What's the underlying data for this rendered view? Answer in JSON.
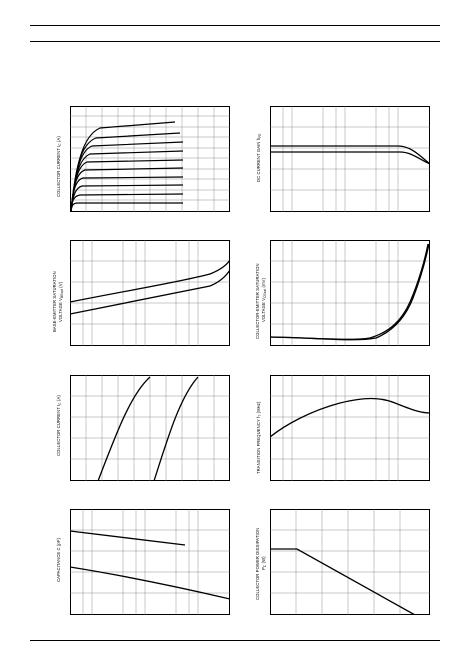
{
  "charts": [
    {
      "id": "ic-vce",
      "ylabel": "COLLECTOR CURRENT  I",
      "sub": "C",
      "unit": " (A)"
    },
    {
      "id": "hfe-ic",
      "ylabel": "DC CURRENT GAIN  h",
      "sub": "FE",
      "unit": ""
    },
    {
      "id": "vbesat-ic",
      "ylabel": "BASE-EMITTER SATURATION",
      "ylabel2": "VOLTAGE  V",
      "sub": "BEsat",
      "unit": "  (V)"
    },
    {
      "id": "vcesat-ic",
      "ylabel": "COLLECTOR-EMITTER SATURATION",
      "ylabel2": "VOLTAGE  V",
      "sub": "CEsat",
      "unit": "  (mV)"
    },
    {
      "id": "ic-vbe",
      "ylabel": "COLLECTOR CURRENT  I",
      "sub": "C",
      "unit": " (A)"
    },
    {
      "id": "ft-ic",
      "ylabel": "TRANSITION FREQUENCY  f",
      "sub": "T",
      "unit": "  (MHz)"
    },
    {
      "id": "cap-vr",
      "ylabel": "CAPACITANCE  C  (pF)",
      "sub": "",
      "unit": ""
    },
    {
      "id": "pc-ta",
      "ylabel": "COLLECTOR POWER DISSIPATION",
      "ylabel2": "P",
      "sub": "C",
      "unit": "  (W)"
    }
  ],
  "chart_data": [
    {
      "type": "line",
      "title": "",
      "xlabel": "",
      "ylabel": "COLLECTOR CURRENT I C (A)",
      "note": "family of output characteristic curves (curve values not printed)"
    },
    {
      "type": "line",
      "title": "",
      "xlabel": "",
      "ylabel": "DC CURRENT GAIN h FE",
      "note": "two curves, flat then falling at high current"
    },
    {
      "type": "line",
      "title": "",
      "xlabel": "",
      "ylabel": "BASE-EMITTER SATURATION VOLTAGE V BEsat (V)",
      "note": "two rising curves"
    },
    {
      "type": "line",
      "title": "",
      "xlabel": "",
      "ylabel": "COLLECTOR-EMITTER SATURATION VOLTAGE V CEsat (mV)",
      "note": "two curves, flat then rising sharply"
    },
    {
      "type": "line",
      "title": "",
      "xlabel": "",
      "ylabel": "COLLECTOR CURRENT I C (A)",
      "note": "two steep rising curves"
    },
    {
      "type": "line",
      "title": "",
      "xlabel": "",
      "ylabel": "TRANSITION FREQUENCY f T (MHz)",
      "note": "single curve rising then falling"
    },
    {
      "type": "line",
      "title": "",
      "xlabel": "",
      "ylabel": "CAPACITANCE C (pF)",
      "note": "two descending lines"
    },
    {
      "type": "line",
      "title": "",
      "xlabel": "",
      "ylabel": "COLLECTOR POWER DISSIPATION P C (W)",
      "note": "flat then linear derating"
    }
  ]
}
